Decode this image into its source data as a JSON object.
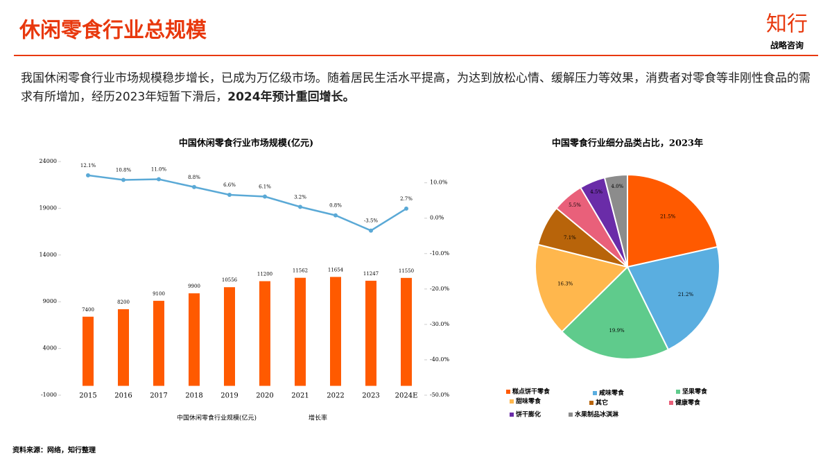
{
  "header": {
    "title": "休闲零食行业总规模",
    "logo": "知行",
    "logo_sub": "战略咨询"
  },
  "intro": {
    "text": "我国休闲零食行业市场规模稳步增长，已成为万亿级市场。随着居民生活水平提高，为达到放松心情、缓解压力等效果，消费者对零食等非刚性食品的需求有所增加，经历2023年短暂下滑后，",
    "bold": "2024年预计重回增长。"
  },
  "source": "资料来源：网络，知行整理",
  "chart_data": [
    {
      "type": "bar",
      "title": "中国休闲零食行业市场规模(亿元)",
      "categories": [
        "2015",
        "2016",
        "2017",
        "2018",
        "2019",
        "2020",
        "2021",
        "2022",
        "2023",
        "2024E"
      ],
      "series": [
        {
          "name": "中国休闲零食行业规模(亿元)",
          "color": "#ff5a00",
          "values": [
            7400,
            8200,
            9100,
            9900,
            10556,
            11200,
            11562,
            11654,
            11247,
            11550
          ]
        },
        {
          "name": "增长率",
          "color": "#5aa9d6",
          "axis": "y2",
          "type": "line",
          "values": [
            12.1,
            10.8,
            11.0,
            8.8,
            6.6,
            6.1,
            3.2,
            0.8,
            -3.5,
            2.7
          ],
          "value_labels": [
            "12.1%",
            "10.8%",
            "11.0%",
            "8.8%",
            "6.6%",
            "6.1%",
            "3.2%",
            "0.8%",
            "-3.5%",
            "2.7%"
          ]
        }
      ],
      "ylim": [
        -1000,
        24000
      ],
      "yticks": [
        -1000,
        4000,
        9000,
        14000,
        19000,
        24000
      ],
      "y2lim": [
        -50,
        16
      ],
      "y2ticks": [
        {
          "value": 10,
          "label": "10.0%"
        },
        {
          "value": 0,
          "label": "0.0%"
        },
        {
          "value": -10,
          "label": "-10.0%"
        },
        {
          "value": -20,
          "label": "-20.0%"
        },
        {
          "value": -30,
          "label": "-30.0%"
        },
        {
          "value": -40,
          "label": "-40.0%"
        },
        {
          "value": -50,
          "label": "-50.0%"
        }
      ]
    },
    {
      "type": "pie",
      "title": "中国零食行业细分品类占比，2023年",
      "categories": [
        "糕点饼干零食",
        "咸味零食",
        "坚果零食",
        "甜味零食",
        "其它",
        "健康零食",
        "饼干膨化",
        "水果制品冰淇淋"
      ],
      "values": [
        21.5,
        21.2,
        19.9,
        16.3,
        7.1,
        5.5,
        4.5,
        4.0
      ],
      "value_labels": [
        "21.5%",
        "21.2%",
        "19.9%",
        "16.3%",
        "7.1%",
        "5.5%",
        "4.5%",
        "4.0%"
      ],
      "colors": [
        "#ff5a00",
        "#5aaee0",
        "#5fcb8c",
        "#ffb74d",
        "#b8640a",
        "#e9607a",
        "#6a2ca8",
        "#8c8c8c"
      ]
    }
  ]
}
